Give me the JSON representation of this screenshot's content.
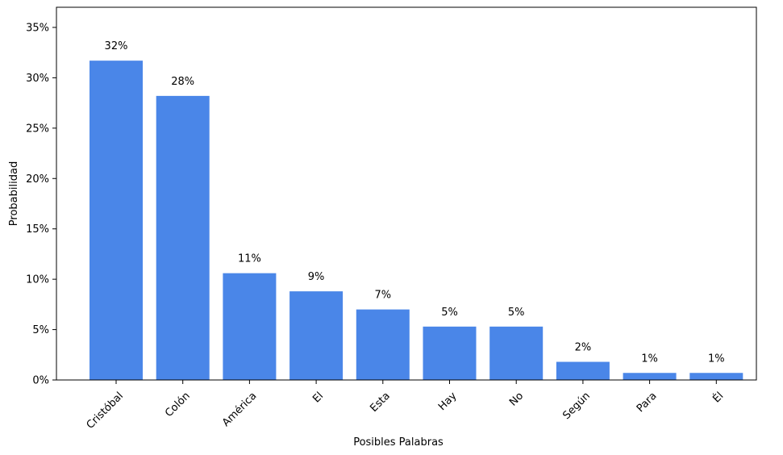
{
  "chart_data": {
    "type": "bar",
    "title": "",
    "xlabel": "Posibles Palabras",
    "ylabel": "Probabilidad",
    "categories": [
      "Cristóbal",
      "Colón",
      "América",
      "El",
      "Esta",
      "Hay",
      "No",
      "Según",
      "Para",
      "Él"
    ],
    "values": [
      31.7,
      28.2,
      10.6,
      8.8,
      7.0,
      5.3,
      5.3,
      1.8,
      0.7,
      0.7
    ],
    "data_labels": [
      "32%",
      "28%",
      "11%",
      "9%",
      "7%",
      "5%",
      "5%",
      "2%",
      "1%",
      "1%"
    ],
    "ylim": [
      0,
      37
    ],
    "yticks": [
      0,
      5,
      10,
      15,
      20,
      25,
      30,
      35
    ],
    "ytick_labels": [
      "0%",
      "5%",
      "10%",
      "15%",
      "20%",
      "25%",
      "30%",
      "35%"
    ],
    "bar_color": "#4a86e8",
    "grid": false,
    "legend": "none"
  }
}
